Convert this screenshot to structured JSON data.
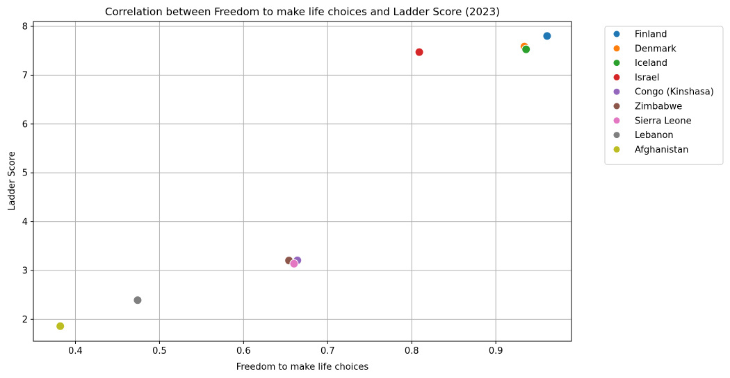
{
  "chart_data": {
    "type": "scatter",
    "title": "Correlation between Freedom to make life choices and Ladder Score (2023)",
    "xlabel": "Freedom to make life choices",
    "ylabel": "Ladder Score",
    "xlim": [
      0.35,
      0.99
    ],
    "ylim": [
      1.55,
      8.1
    ],
    "xticks": [
      0.4,
      0.5,
      0.6,
      0.7,
      0.8,
      0.9
    ],
    "xtick_labels": [
      "0.4",
      "0.5",
      "0.6",
      "0.7",
      "0.8",
      "0.9"
    ],
    "yticks": [
      2,
      3,
      4,
      5,
      6,
      7,
      8
    ],
    "ytick_labels": [
      "2",
      "3",
      "4",
      "5",
      "6",
      "7",
      "8"
    ],
    "grid": true,
    "legend_position": "outside-right-top",
    "points": [
      {
        "name": "Finland",
        "x": 0.961,
        "y": 7.804,
        "color": "#1f77b4"
      },
      {
        "name": "Denmark",
        "x": 0.934,
        "y": 7.586,
        "color": "#ff7f0e"
      },
      {
        "name": "Iceland",
        "x": 0.936,
        "y": 7.53,
        "color": "#2ca02c"
      },
      {
        "name": "Israel",
        "x": 0.809,
        "y": 7.473,
        "color": "#d62728"
      },
      {
        "name": "Congo (Kinshasa)",
        "x": 0.664,
        "y": 3.207,
        "color": "#9467bd"
      },
      {
        "name": "Zimbabwe",
        "x": 0.654,
        "y": 3.204,
        "color": "#8c564b"
      },
      {
        "name": "Sierra Leone",
        "x": 0.66,
        "y": 3.138,
        "color": "#e377c2"
      },
      {
        "name": "Lebanon",
        "x": 0.474,
        "y": 2.392,
        "color": "#7f7f7f"
      },
      {
        "name": "Afghanistan",
        "x": 0.382,
        "y": 1.859,
        "color": "#bcbd22"
      }
    ]
  }
}
